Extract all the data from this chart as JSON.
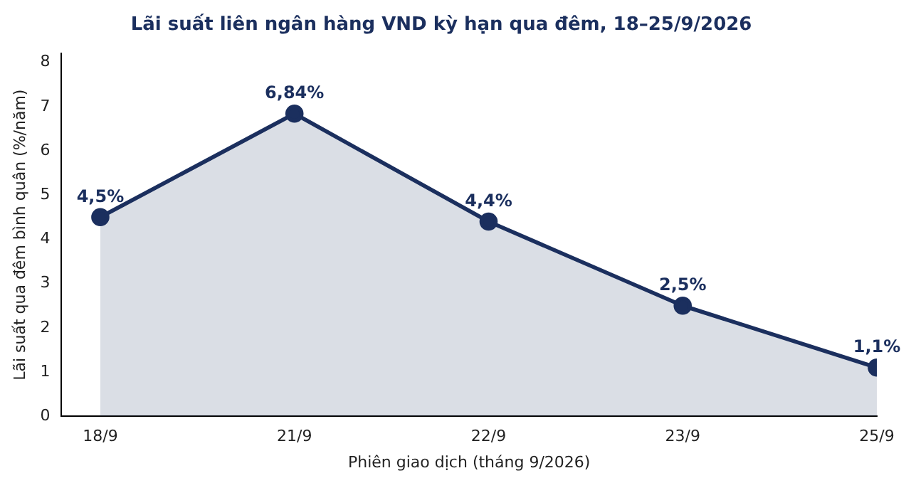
{
  "chart_data": {
    "type": "area",
    "title": "Lãi suất liên ngân hàng VND kỳ hạn qua đêm, 18–25/9/2026",
    "xlabel": "Phiên giao dịch (tháng 9/2026)",
    "ylabel": "Lãi suất qua đêm bình quân (%/năm)",
    "categories": [
      "18/9",
      "21/9",
      "22/9",
      "23/9",
      "25/9"
    ],
    "series": [
      {
        "color": "#1b2f5e",
        "values": [
          4.5,
          6.84,
          4.4,
          2.5,
          1.1
        ],
        "value_labels": [
          "4,5%",
          "6,84%",
          "4,4%",
          "2,5%",
          "1,1%"
        ]
      }
    ],
    "ylim": [
      0,
      8.2
    ],
    "yticks": [
      0,
      1,
      2,
      3,
      4,
      5,
      6,
      7,
      8
    ],
    "grid": false,
    "legend": false,
    "marker": "circle",
    "line_style": "solid"
  }
}
